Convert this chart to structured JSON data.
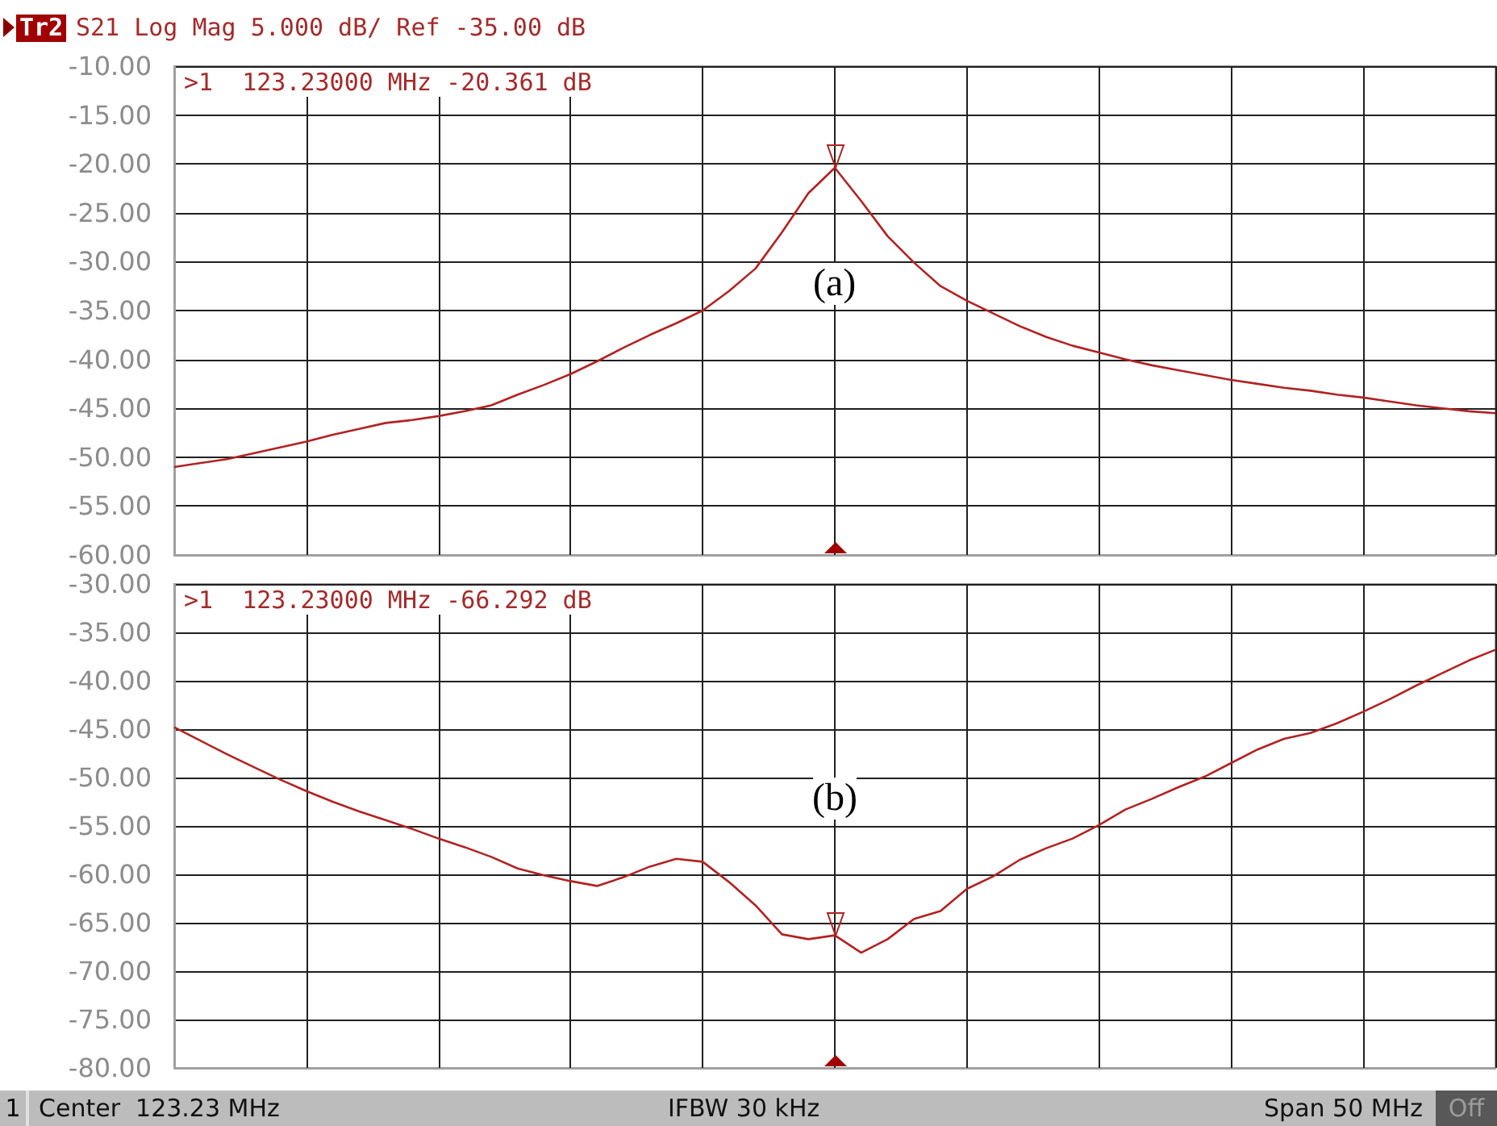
{
  "chart_data": [
    {
      "type": "line",
      "title": "S21 Log Mag 5.000 dB/ Ref -35.00 dB",
      "subtitle": "Tr2",
      "categories": [
        null,
        null,
        null,
        null,
        null,
        null,
        null,
        null,
        null,
        null,
        null,
        null,
        null,
        null,
        null,
        null,
        null,
        null,
        null,
        null,
        null,
        null,
        null,
        null,
        null,
        null,
        null,
        null,
        null,
        null,
        null,
        null,
        null,
        null,
        null,
        null,
        null,
        null,
        null,
        null,
        null,
        null,
        null,
        null,
        null,
        null,
        null,
        null,
        null,
        null,
        null
      ],
      "series": [
        {
          "color": "#b22222",
          "values": [
            -51.0,
            -50.6,
            -50.2,
            -49.6,
            -49.0,
            -48.4,
            -47.7,
            -47.1,
            -46.5,
            -46.2,
            -45.8,
            -45.3,
            -44.7,
            -43.6,
            -42.6,
            -41.5,
            -40.2,
            -38.8,
            -37.5,
            -36.3,
            -35.0,
            -33.0,
            -30.7,
            -27.0,
            -23.0,
            -20.4,
            -23.8,
            -27.4,
            -30.1,
            -32.5,
            -34.0,
            -35.3,
            -36.6,
            -37.7,
            -38.6,
            -39.3,
            -40.0,
            -40.6,
            -41.1,
            -41.6,
            -42.1,
            -42.5,
            -42.9,
            -43.2,
            -43.6,
            -43.9,
            -44.3,
            -44.7,
            -45.0,
            -45.3,
            -45.5
          ]
        }
      ],
      "ylim": [
        -60,
        -10
      ],
      "yticks": [
        {
          "value": -10,
          "label": "-10.00"
        },
        {
          "value": -15,
          "label": "-15.00"
        },
        {
          "value": -20,
          "label": "-20.00"
        },
        {
          "value": -25,
          "label": "-25.00"
        },
        {
          "value": -30,
          "label": "-30.00"
        },
        {
          "value": -35,
          "label": "-35.00"
        },
        {
          "value": -40,
          "label": "-40.00"
        },
        {
          "value": -45,
          "label": "-45.00"
        },
        {
          "value": -50,
          "label": "-50.00"
        },
        {
          "value": -55,
          "label": "-55.00"
        },
        {
          "value": -60,
          "label": "-60.00"
        }
      ],
      "tick_labels": "y",
      "grid": true,
      "marker": "none",
      "line_style": "solid",
      "annotations": [
        ">1  123.23000 MHz -20.361 dB",
        "(a)"
      ]
    },
    {
      "type": "line",
      "categories": [
        null,
        null,
        null,
        null,
        null,
        null,
        null,
        null,
        null,
        null,
        null,
        null,
        null,
        null,
        null,
        null,
        null,
        null,
        null,
        null,
        null,
        null,
        null,
        null,
        null,
        null,
        null,
        null,
        null,
        null,
        null,
        null,
        null,
        null,
        null,
        null,
        null,
        null,
        null,
        null,
        null,
        null,
        null,
        null,
        null,
        null,
        null,
        null,
        null,
        null,
        null
      ],
      "series": [
        {
          "color": "#b22222",
          "values": [
            -44.8,
            -46.2,
            -47.6,
            -48.9,
            -50.2,
            -51.4,
            -52.5,
            -53.5,
            -54.4,
            -55.3,
            -56.3,
            -57.2,
            -58.2,
            -59.4,
            -60.1,
            -60.7,
            -61.2,
            -60.3,
            -59.2,
            -58.4,
            -58.7,
            -60.8,
            -63.2,
            -66.2,
            -66.7,
            -66.3,
            -68.1,
            -66.7,
            -64.6,
            -63.8,
            -61.5,
            -60.2,
            -58.5,
            -57.3,
            -56.3,
            -54.9,
            -53.3,
            -52.2,
            -51.0,
            -49.9,
            -48.5,
            -47.1,
            -46.0,
            -45.4,
            -44.4,
            -43.2,
            -41.9,
            -40.5,
            -39.2,
            -37.9,
            -36.8
          ]
        }
      ],
      "ylim": [
        -80,
        -30
      ],
      "yticks": [
        {
          "value": -30,
          "label": "-30.00"
        },
        {
          "value": -35,
          "label": "-35.00"
        },
        {
          "value": -40,
          "label": "-40.00"
        },
        {
          "value": -45,
          "label": "-45.00"
        },
        {
          "value": -50,
          "label": "-50.00"
        },
        {
          "value": -55,
          "label": "-55.00"
        },
        {
          "value": -60,
          "label": "-60.00"
        },
        {
          "value": -65,
          "label": "-65.00"
        },
        {
          "value": -70,
          "label": "-70.00"
        },
        {
          "value": -75,
          "label": "-75.00"
        },
        {
          "value": -80,
          "label": "-80.00"
        }
      ],
      "tick_labels": "y",
      "grid": true,
      "marker": "none",
      "line_style": "solid",
      "annotations": [
        ">1  123.23000 MHz -66.292 dB",
        "(b)",
        "1",
        "Center  123.23 MHz",
        "IFBW 30 kHz",
        "Span 50 MHz",
        "Off"
      ]
    }
  ]
}
